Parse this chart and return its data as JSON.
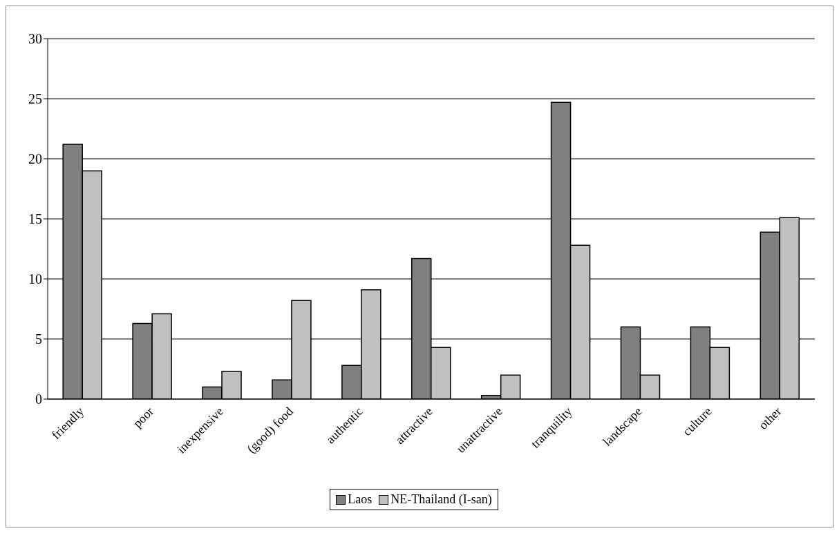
{
  "chart_data": {
    "type": "bar",
    "categories": [
      "friendly",
      "poor",
      "inexpensive",
      "(good) food",
      "authentic",
      "attractive",
      "unattractive",
      "tranquility",
      "landscape",
      "culture",
      "other"
    ],
    "series": [
      {
        "name": "Laos",
        "color": "#808080",
        "values": [
          21.2,
          6.3,
          1.0,
          1.6,
          2.8,
          11.7,
          0.3,
          24.7,
          6.0,
          6.0,
          13.9
        ]
      },
      {
        "name": "NE-Thailand (I-san)",
        "color": "#c0c0c0",
        "values": [
          19.0,
          7.1,
          2.3,
          8.2,
          9.1,
          4.3,
          2.0,
          12.8,
          2.0,
          4.3,
          15.1
        ]
      }
    ],
    "ylim": [
      0,
      30
    ],
    "yticks": [
      0,
      5,
      10,
      15,
      20,
      25,
      30
    ],
    "grid": "y",
    "legend": "bottom"
  }
}
